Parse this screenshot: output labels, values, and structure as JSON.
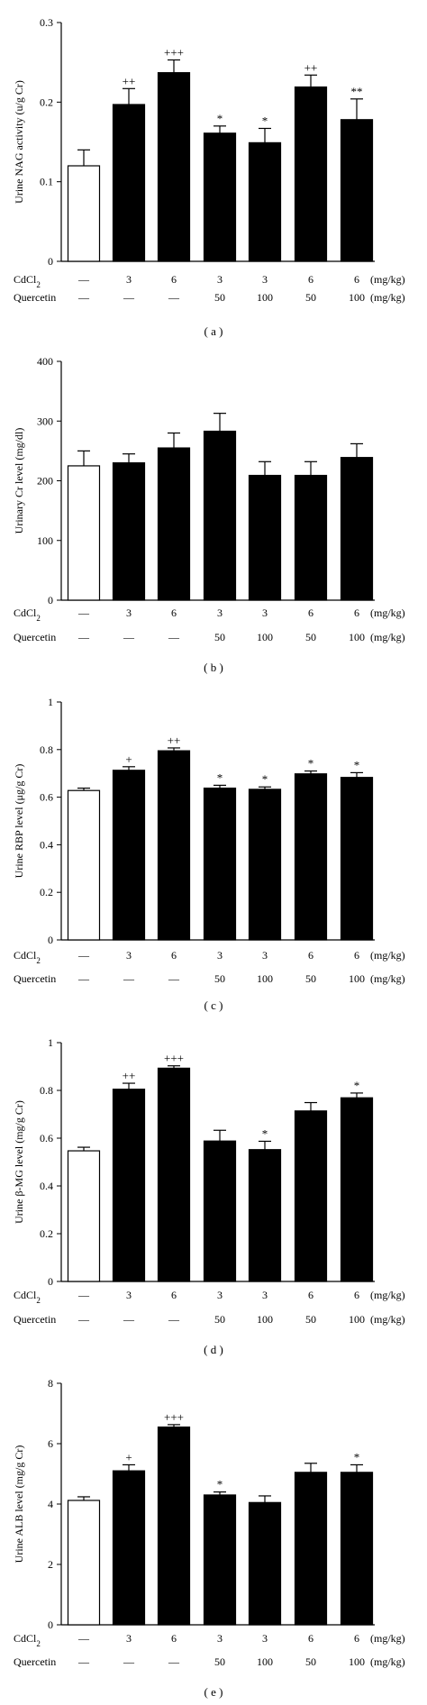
{
  "chart_data": [
    {
      "type": "bar",
      "panel_label": "( a )",
      "ylabel": "Urine NAG activity (u/g Cr)",
      "ylim": [
        0,
        0.3
      ],
      "yticks": [
        0,
        0.1,
        0.2,
        0.3
      ],
      "ytick_labels": [
        "0",
        "0.1",
        "0.2",
        "0.3"
      ],
      "values": [
        0.12,
        0.197,
        0.237,
        0.161,
        0.149,
        0.219,
        0.178
      ],
      "errors": [
        0.02,
        0.02,
        0.016,
        0.009,
        0.018,
        0.015,
        0.026
      ],
      "fills": [
        "#ffffff",
        "#000000",
        "#000000",
        "#000000",
        "#000000",
        "#000000",
        "#000000"
      ],
      "annotations": [
        "",
        "++",
        "+++",
        "*",
        "*",
        "++",
        "**"
      ]
    },
    {
      "type": "bar",
      "panel_label": "( b )",
      "ylabel": "Urinary Cr level (mg/dl)",
      "ylim": [
        0,
        400
      ],
      "yticks": [
        0,
        100,
        200,
        300,
        400
      ],
      "ytick_labels": [
        "0",
        "100",
        "200",
        "300",
        "400"
      ],
      "values": [
        225,
        230,
        255,
        283,
        209,
        209,
        239
      ],
      "errors": [
        25,
        15,
        25,
        30,
        23,
        23,
        23
      ],
      "fills": [
        "#ffffff",
        "#000000",
        "#000000",
        "#000000",
        "#000000",
        "#000000",
        "#000000"
      ],
      "annotations": [
        "",
        "",
        "",
        "",
        "",
        "",
        ""
      ]
    },
    {
      "type": "bar",
      "panel_label": "( c )",
      "ylabel": "Urine RBP level (μg/g Cr)",
      "ylim": [
        0,
        1
      ],
      "yticks": [
        0,
        0.2,
        0.4,
        0.6,
        0.8,
        1
      ],
      "ytick_labels": [
        "0",
        "0.2",
        "0.4",
        "0.6",
        "0.8",
        "1"
      ],
      "values": [
        0.628,
        0.713,
        0.795,
        0.638,
        0.633,
        0.698,
        0.683
      ],
      "errors": [
        0.01,
        0.015,
        0.012,
        0.012,
        0.01,
        0.012,
        0.02
      ],
      "fills": [
        "#ffffff",
        "#000000",
        "#000000",
        "#000000",
        "#000000",
        "#000000",
        "#000000"
      ],
      "annotations": [
        "",
        "+",
        "++",
        "*",
        "*",
        "*",
        "*"
      ]
    },
    {
      "type": "bar",
      "panel_label": "( d )",
      "ylabel": "Urine β-MG level (mg/g Cr)",
      "ylim": [
        0,
        1
      ],
      "yticks": [
        0,
        0.2,
        0.4,
        0.6,
        0.8,
        1
      ],
      "ytick_labels": [
        "0",
        "0.2",
        "0.4",
        "0.6",
        "0.8",
        "1"
      ],
      "values": [
        0.547,
        0.805,
        0.893,
        0.588,
        0.552,
        0.714,
        0.769
      ],
      "errors": [
        0.015,
        0.025,
        0.01,
        0.045,
        0.035,
        0.035,
        0.02
      ],
      "fills": [
        "#ffffff",
        "#000000",
        "#000000",
        "#000000",
        "#000000",
        "#000000",
        "#000000"
      ],
      "annotations": [
        "",
        "++",
        "+++",
        "",
        "*",
        "",
        "*"
      ]
    },
    {
      "type": "bar",
      "panel_label": "( e )",
      "ylabel": "Urine ALB level (mg/g Cr)",
      "ylim": [
        0,
        8
      ],
      "yticks": [
        0,
        2,
        4,
        6,
        8
      ],
      "ytick_labels": [
        "0",
        "2",
        "4",
        "6",
        "8"
      ],
      "values": [
        4.12,
        5.1,
        6.55,
        4.3,
        4.05,
        5.05,
        5.05
      ],
      "errors": [
        0.12,
        0.2,
        0.08,
        0.1,
        0.22,
        0.3,
        0.25
      ],
      "fills": [
        "#ffffff",
        "#000000",
        "#000000",
        "#000000",
        "#000000",
        "#000000",
        "#000000"
      ],
      "annotations": [
        "",
        "+",
        "+++",
        "*",
        "",
        "",
        "*"
      ]
    }
  ],
  "dose_table": {
    "cd_label": "CdCl",
    "cd_subscript": "2",
    "cd_doses": [
      "—",
      "3",
      "6",
      "3",
      "3",
      "6",
      "6"
    ],
    "quercetin_label": "Quercetin",
    "quercetin_doses": [
      "—",
      "—",
      "—",
      "50",
      "100",
      "50",
      "100"
    ],
    "unit": "(mg/kg)"
  }
}
